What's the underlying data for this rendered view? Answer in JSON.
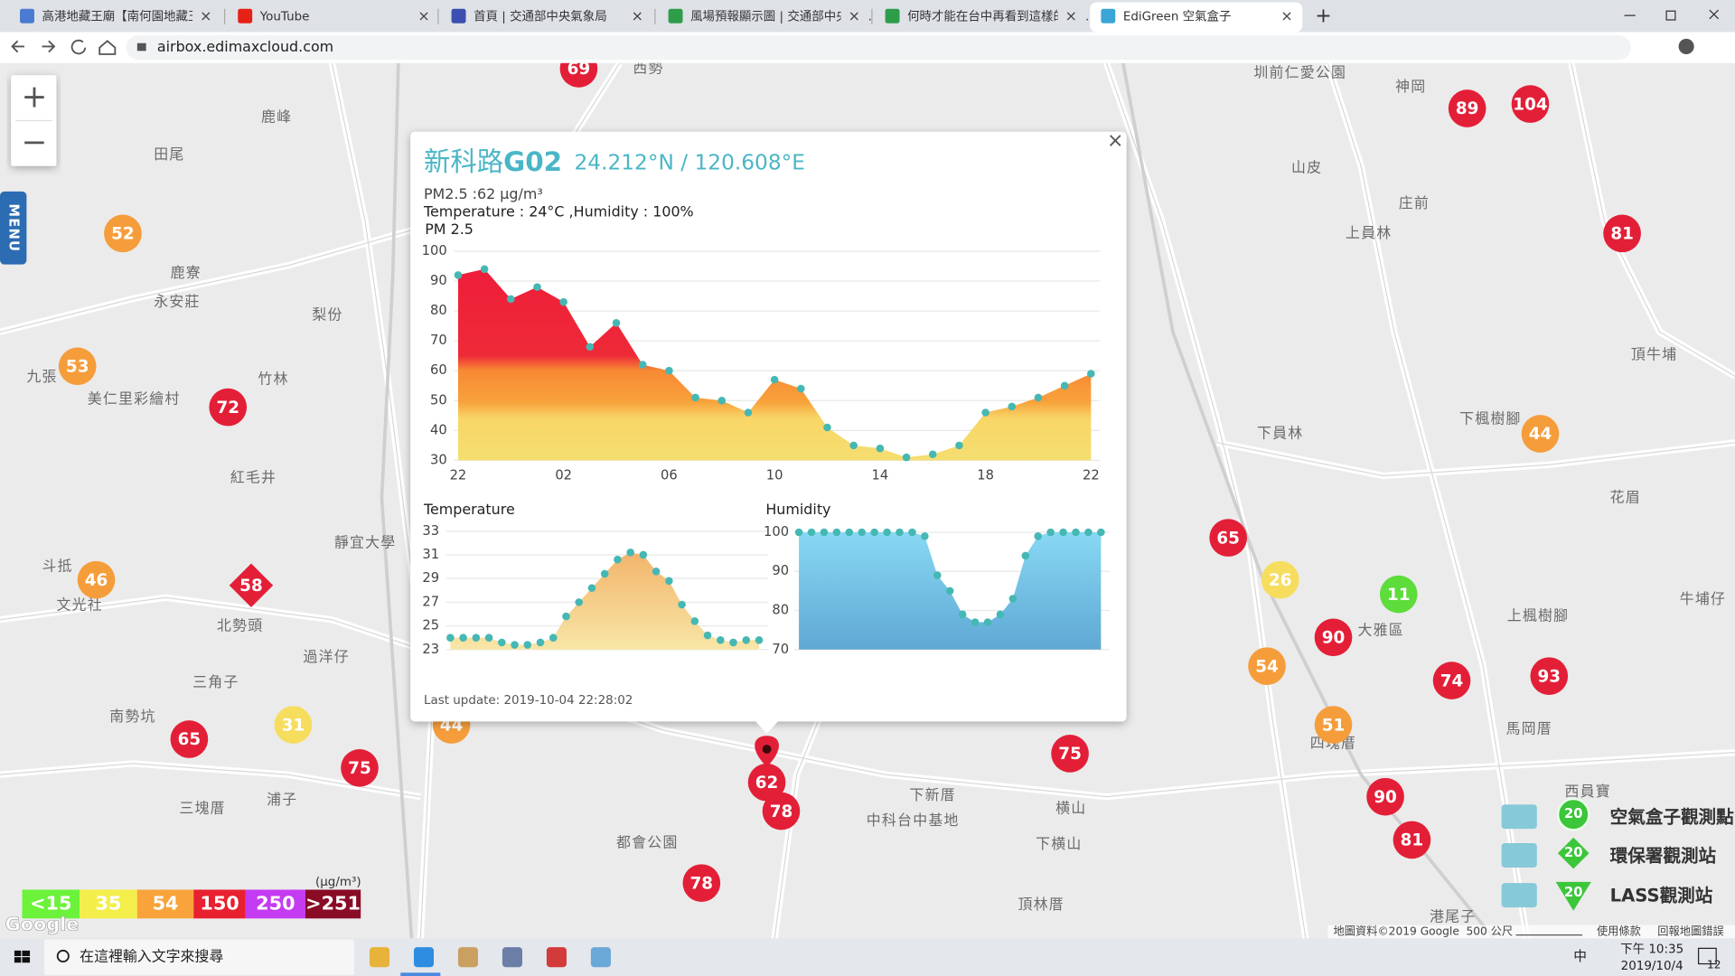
{
  "browser": {
    "tabs": [
      "高港地藏王廟【南何園地藏王廟】",
      "YouTube",
      "首頁 | 交通部中央氣象局",
      "風場預報顯示圖 | 交通部中央氣...",
      "何時才能在台中再看到這樣的藍...",
      "EdiGreen 空氣盒子"
    ],
    "close": "×",
    "new_tab": "+",
    "url": "airbox.edimaxcloud.com"
  },
  "map": {
    "zoom_in": "+",
    "zoom_out": "−",
    "menu": "MENU",
    "markers": [
      {
        "label": "69",
        "color": "#e31f38"
      },
      {
        "label": "89",
        "color": "#e31f38"
      },
      {
        "label": "104",
        "color": "#e31f38"
      },
      {
        "label": "81",
        "color": "#e31f38"
      },
      {
        "label": "52",
        "color": "#f59d3b"
      },
      {
        "label": "53",
        "color": "#f59d3b"
      },
      {
        "label": "72",
        "color": "#e31f38"
      },
      {
        "label": "44",
        "color": "#f59d3b"
      },
      {
        "label": "65",
        "color": "#e31f38"
      },
      {
        "label": "26",
        "color": "#f6dd5e"
      },
      {
        "label": "11",
        "color": "#5ddc3c"
      },
      {
        "label": "46",
        "color": "#f59d3b"
      },
      {
        "label": "58",
        "color": "#e31f38",
        "shape": "diamond"
      },
      {
        "label": "90",
        "color": "#e31f38"
      },
      {
        "label": "54",
        "color": "#f59d3b"
      },
      {
        "label": "74",
        "color": "#e31f38"
      },
      {
        "label": "93",
        "color": "#e31f38"
      },
      {
        "label": "51",
        "color": "#f59d3b"
      },
      {
        "label": "31",
        "color": "#f6dd5e"
      },
      {
        "label": "65",
        "color": "#e31f38"
      },
      {
        "label": "75",
        "color": "#e31f38"
      },
      {
        "label": "75",
        "color": "#e31f38"
      },
      {
        "label": "90",
        "color": "#e31f38"
      },
      {
        "label": "81",
        "color": "#e31f38"
      },
      {
        "label": "44",
        "color": "#f59d3b"
      },
      {
        "label": "78",
        "color": "#e31f38"
      },
      {
        "label": "78",
        "color": "#e31f38"
      },
      {
        "label": "62",
        "color": "#e31f38",
        "selected": true
      }
    ],
    "places": [
      "西勢",
      "圳前仁愛公園",
      "神岡",
      "鹿峰",
      "田尾",
      "山皮",
      "庄前",
      "上員林",
      "鹿寮",
      "永安莊",
      "梨份",
      "竹林",
      "九張",
      "美仁里彩繪村",
      "紅毛井",
      "下員林",
      "下楓樹腳",
      "頂牛埔",
      "花眉",
      "斗抵",
      "文光社",
      "靜宜大學",
      "北勢頭",
      "過洋仔",
      "三角子",
      "南勢坑",
      "大雅區",
      "上楓樹腳",
      "牛埔仔",
      "馬岡厝",
      "四塊厝",
      "浦子",
      "三塊厝",
      "下新厝",
      "中科台中基地",
      "横山",
      "下横山",
      "都會公園",
      "頂林厝",
      "西員寶",
      "港尾子"
    ],
    "attribution": "地圖資料©2019 Google",
    "scale": "500 公尺",
    "terms": "使用條款",
    "report": "回報地圖錯誤",
    "logo": "Google"
  },
  "legend": {
    "items": [
      {
        "label": "<15",
        "color": "#6cf23a"
      },
      {
        "label": "35",
        "color": "#f4ee4a"
      },
      {
        "label": "54",
        "color": "#f8a43a"
      },
      {
        "label": "150",
        "color": "#e8202f"
      },
      {
        "label": "250",
        "color": "#c43bf2"
      },
      {
        "label": ">251",
        "color": "#8a0b26"
      }
    ],
    "unit": "(μg/m³)"
  },
  "station_legend": {
    "items": [
      {
        "label": "空氣盒子觀測點",
        "badge": "20"
      },
      {
        "label": "環保署觀測站",
        "badge": "20"
      },
      {
        "label": "LASS觀測站",
        "badge": "20"
      }
    ]
  },
  "popup": {
    "station_name": "新科路",
    "station_id": "G02",
    "coords": "24.212°N / 120.608°E",
    "pm25": "PM2.5 :62 μg/m³",
    "weather": "Temperature : 24°C ,Humidity : 100%",
    "last_update": "Last update: 2019-10-04 22:28:02",
    "close": "×"
  },
  "chart_data": [
    {
      "type": "area",
      "title": "PM 2.5",
      "categories": [
        "22",
        null,
        null,
        null,
        "02",
        null,
        null,
        null,
        "06",
        null,
        null,
        null,
        "10",
        null,
        null,
        null,
        "14",
        null,
        null,
        null,
        "18",
        null,
        null,
        null,
        "22"
      ],
      "values": [
        92,
        94,
        84,
        88,
        83,
        68,
        76,
        62,
        60,
        51,
        50,
        46,
        57,
        54,
        41,
        35,
        34,
        31,
        32,
        35,
        46,
        48,
        51,
        55,
        59
      ],
      "ylim": [
        30,
        100
      ],
      "yticks": [
        30,
        40,
        50,
        60,
        70,
        80,
        90,
        100
      ],
      "grid": true,
      "color": "#45b8b4"
    },
    {
      "type": "area",
      "title": "Temperature",
      "values": [
        24,
        24,
        24,
        24,
        23.6,
        23.4,
        23.4,
        23.6,
        24,
        25.8,
        27,
        28.2,
        29.4,
        30.6,
        31.2,
        31,
        29.6,
        28.8,
        26.8,
        25.4,
        24.2,
        23.8,
        23.6,
        23.8,
        23.8
      ],
      "ylim": [
        23,
        33
      ],
      "yticks": [
        23,
        25,
        27,
        29,
        31,
        33
      ],
      "grid": true,
      "color": "#45b8b4"
    },
    {
      "type": "area",
      "title": "Humidity",
      "values": [
        100,
        100,
        100,
        100,
        100,
        100,
        100,
        100,
        100,
        100,
        99,
        89,
        85,
        79,
        77,
        77,
        79,
        83,
        94,
        99,
        100,
        100,
        100,
        100,
        100
      ],
      "ylim": [
        70,
        100
      ],
      "yticks": [
        70,
        80,
        90,
        100
      ],
      "grid": true,
      "color": "#45b8b4"
    }
  ],
  "taskbar": {
    "search": "在這裡輸入文字來搜尋",
    "ime": "中",
    "time": "下午 10:35",
    "date": "2019/10/4",
    "notifications": "12"
  }
}
